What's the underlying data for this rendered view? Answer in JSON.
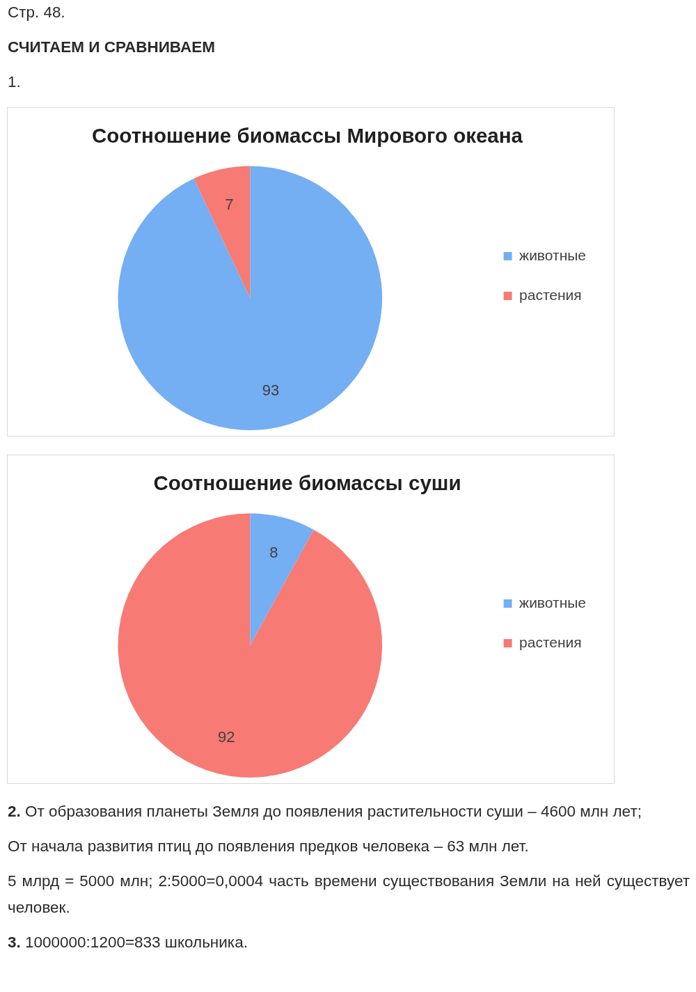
{
  "chart_data": [
    {
      "type": "pie",
      "title": "Соотношение биомассы Мирового океана",
      "categories": [
        "животные",
        "растения"
      ],
      "values": [
        93,
        7
      ],
      "colors": [
        "#74aef3",
        "#f77a75"
      ],
      "data_labels": true,
      "legend": "right",
      "annotations": [
        "Стр. 48.",
        "СЧИТАЕМ И СРАВНИВАЕМ",
        "1."
      ]
    },
    {
      "type": "pie",
      "title": "Соотношение биомассы суши",
      "categories": [
        "животные",
        "растения"
      ],
      "values": [
        8,
        92
      ],
      "colors": [
        "#74aef3",
        "#f77a75"
      ],
      "data_labels": true,
      "legend": "right",
      "annotations": [
        "2. От образования планеты Земля до появления растительности суши – 4600 млн лет;",
        "От начала развития птиц до появления предков человека – 63 млн лет.",
        "5 млрд = 5000 млн; 2:5000=0,0004 часть времени существования Земли на ней существует человек.",
        "3. 1000000:1200=833 школьника."
      ]
    }
  ]
}
